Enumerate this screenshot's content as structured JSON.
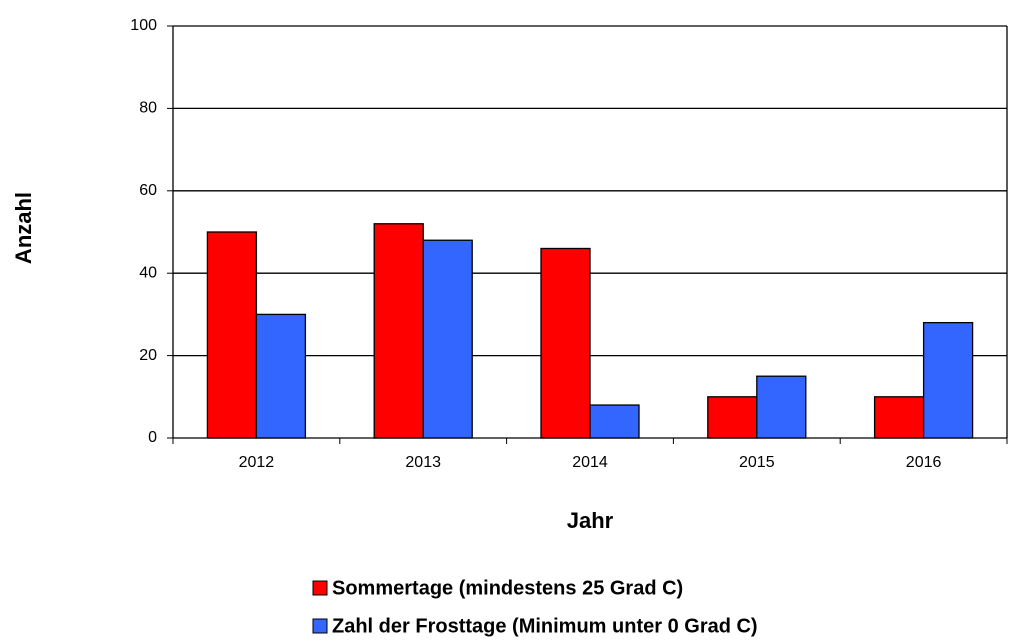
{
  "chart_data": {
    "type": "bar",
    "x_label": "Jahr",
    "y_label": "Anzahl",
    "categories": [
      "2012",
      "2013",
      "2014",
      "2015",
      "2016"
    ],
    "series": [
      {
        "name": "Sommertage (mindestens 25 Grad C)",
        "color": "#ff0000",
        "values": [
          50,
          52,
          46,
          10,
          10
        ]
      },
      {
        "name": "Zahl der Frosttage (Minimum unter 0 Grad C)",
        "color": "#3366ff",
        "values": [
          30,
          48,
          8,
          15,
          28
        ]
      }
    ],
    "ylim": [
      0,
      100
    ],
    "yticks": [
      0,
      20,
      40,
      60,
      80,
      100
    ],
    "grid": true,
    "legend": "bottom"
  }
}
